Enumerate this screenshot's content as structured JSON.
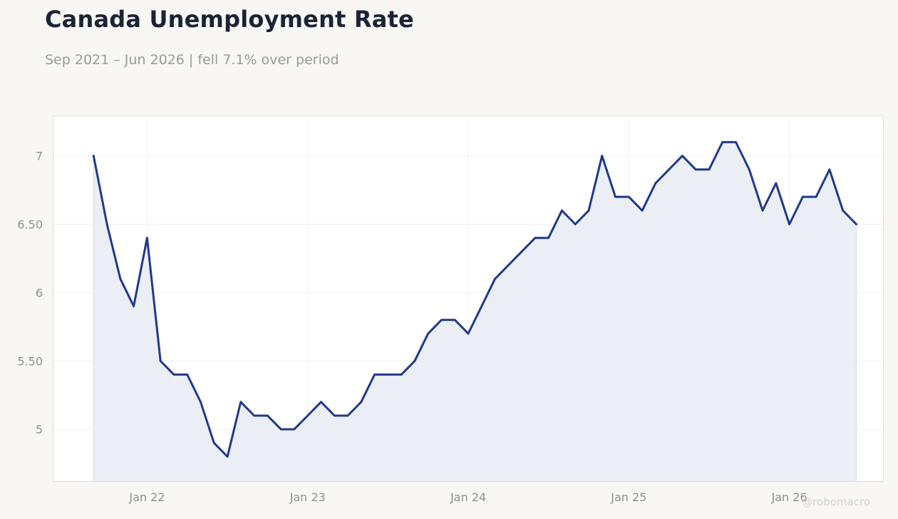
{
  "title": "Canada Unemployment Rate",
  "subtitle": "Sep 2021 – Jun 2026 | fell 7.1% over period",
  "watermark": "@robomacro",
  "colors": {
    "line": "#1f3a8a",
    "fill": "#eceef5",
    "plot_bg": "#ffffff",
    "page_bg": "#f8f7f4",
    "grid": "#efefef"
  },
  "chart_data": {
    "type": "area",
    "title": "Canada Unemployment Rate",
    "subtitle": "Sep 2021 – Jun 2026 | fell 7.1% over period",
    "xlabel": "",
    "ylabel": "",
    "ylim": [
      4.62,
      7.29
    ],
    "xlim": [
      "2021-06",
      "2026-08"
    ],
    "grid": true,
    "y_ticks": [
      5,
      5.5,
      6,
      6.5,
      7
    ],
    "y_tick_labels": [
      "5",
      "5.50",
      "6",
      "6.50",
      "7"
    ],
    "x_ticks": [
      "2022-01",
      "2023-01",
      "2024-01",
      "2025-01",
      "2026-01"
    ],
    "x_tick_labels": [
      "Jan 22",
      "Jan 23",
      "Jan 24",
      "Jan 25",
      "Jan 26"
    ],
    "series": [
      {
        "x": [
          "2021-09",
          "2021-10",
          "2021-11",
          "2021-12",
          "2022-01",
          "2022-02",
          "2022-03",
          "2022-04",
          "2022-05",
          "2022-06",
          "2022-07",
          "2022-08",
          "2022-09",
          "2022-10",
          "2022-11",
          "2022-12",
          "2023-01",
          "2023-02",
          "2023-03",
          "2023-04",
          "2023-05",
          "2023-06",
          "2023-07",
          "2023-08",
          "2023-09",
          "2023-10",
          "2023-11",
          "2023-12",
          "2024-01",
          "2024-02",
          "2024-03",
          "2024-04",
          "2024-05",
          "2024-06",
          "2024-07",
          "2024-08",
          "2024-09",
          "2024-10",
          "2024-11",
          "2024-12",
          "2025-01",
          "2025-02",
          "2025-03",
          "2025-04",
          "2025-05",
          "2025-06",
          "2025-07",
          "2025-08",
          "2025-09",
          "2025-10",
          "2025-11",
          "2025-12",
          "2026-01",
          "2026-02",
          "2026-03",
          "2026-04",
          "2026-05",
          "2026-06"
        ],
        "values": [
          7.0,
          6.5,
          6.1,
          5.9,
          6.4,
          5.5,
          5.4,
          5.4,
          5.2,
          4.9,
          4.8,
          5.2,
          5.1,
          5.1,
          5.0,
          5.0,
          5.1,
          5.2,
          5.1,
          5.1,
          5.2,
          5.4,
          5.4,
          5.4,
          5.5,
          5.7,
          5.8,
          5.8,
          5.7,
          5.9,
          6.1,
          6.2,
          6.3,
          6.4,
          6.4,
          6.6,
          6.5,
          6.6,
          7.0,
          6.7,
          6.7,
          6.6,
          6.8,
          6.9,
          7.0,
          6.9,
          6.9,
          7.1,
          7.1,
          6.9,
          6.6,
          6.8,
          6.5,
          6.7,
          6.7,
          6.9,
          6.6,
          6.5
        ]
      }
    ]
  }
}
